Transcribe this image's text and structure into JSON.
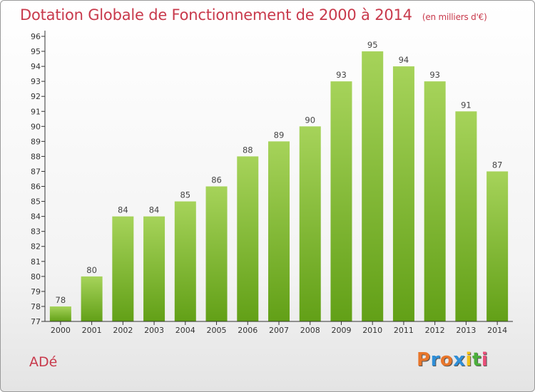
{
  "title": "Dotation Globale de Fonctionnement de 2000 à 2014",
  "unit": "(en milliers d'€)",
  "commune": "ADé",
  "logo": {
    "text": "Proxiti",
    "colors": [
      "#e8762b",
      "#2f8fd8",
      "#e8762b",
      "#2f8fd8",
      "#f2c21b",
      "#4caf3c",
      "#e94e77"
    ]
  },
  "colors": {
    "title": "#c8394b",
    "bar_top": "#a6d35a",
    "bar_bottom": "#62a017",
    "axis": "#333333"
  },
  "chart_data": {
    "type": "bar",
    "categories": [
      "2000",
      "2001",
      "2002",
      "2003",
      "2004",
      "2005",
      "2006",
      "2007",
      "2008",
      "2009",
      "2010",
      "2011",
      "2012",
      "2013",
      "2014"
    ],
    "values": [
      78,
      80,
      84,
      84,
      85,
      86,
      88,
      89,
      90,
      93,
      95,
      94,
      93,
      91,
      87
    ],
    "ylim": [
      77,
      96
    ],
    "yticks": [
      77,
      78,
      79,
      80,
      81,
      82,
      83,
      84,
      85,
      86,
      87,
      88,
      89,
      90,
      91,
      92,
      93,
      94,
      95,
      96
    ],
    "grid": false,
    "data_labels": true
  }
}
